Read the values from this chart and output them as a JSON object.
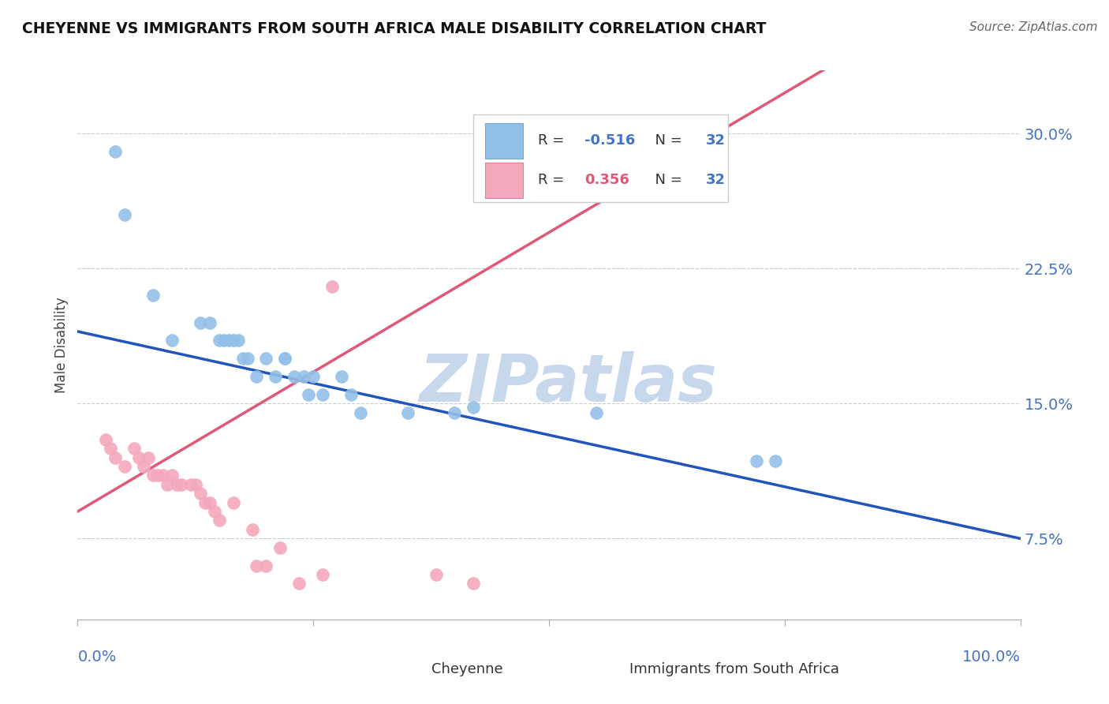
{
  "title": "CHEYENNE VS IMMIGRANTS FROM SOUTH AFRICA MALE DISABILITY CORRELATION CHART",
  "source": "Source: ZipAtlas.com",
  "ylabel": "Male Disability",
  "yticks": [
    0.075,
    0.15,
    0.225,
    0.3
  ],
  "ytick_labels": [
    "7.5%",
    "15.0%",
    "22.5%",
    "30.0%"
  ],
  "xlim": [
    0.0,
    1.0
  ],
  "ylim": [
    0.03,
    0.335
  ],
  "cheyenne_color": "#92C0E8",
  "cheyenne_edge": "#6AAAD4",
  "immigrants_color": "#F4A8BC",
  "immigrants_edge": "#E080A0",
  "trend_blue": "#2255BB",
  "trend_pink": "#E05878",
  "diag_color": "#BBBBBB",
  "cheyenne_R": -0.516,
  "cheyenne_N": 32,
  "immigrants_R": 0.356,
  "immigrants_N": 32,
  "cheyenne_x": [
    0.04,
    0.05,
    0.08,
    0.1,
    0.13,
    0.14,
    0.15,
    0.155,
    0.16,
    0.165,
    0.17,
    0.175,
    0.18,
    0.19,
    0.2,
    0.21,
    0.22,
    0.22,
    0.23,
    0.24,
    0.245,
    0.25,
    0.26,
    0.28,
    0.29,
    0.3,
    0.35,
    0.4,
    0.42,
    0.55,
    0.72,
    0.74
  ],
  "cheyenne_y": [
    0.29,
    0.255,
    0.21,
    0.185,
    0.195,
    0.195,
    0.185,
    0.185,
    0.185,
    0.185,
    0.185,
    0.175,
    0.175,
    0.165,
    0.175,
    0.165,
    0.175,
    0.175,
    0.165,
    0.165,
    0.155,
    0.165,
    0.155,
    0.165,
    0.155,
    0.145,
    0.145,
    0.145,
    0.148,
    0.145,
    0.118,
    0.118
  ],
  "immigrants_x": [
    0.03,
    0.035,
    0.04,
    0.05,
    0.06,
    0.065,
    0.07,
    0.075,
    0.08,
    0.085,
    0.09,
    0.095,
    0.1,
    0.105,
    0.11,
    0.12,
    0.125,
    0.13,
    0.135,
    0.14,
    0.145,
    0.15,
    0.165,
    0.185,
    0.19,
    0.2,
    0.215,
    0.235,
    0.26,
    0.27,
    0.38,
    0.42
  ],
  "immigrants_y": [
    0.13,
    0.125,
    0.12,
    0.115,
    0.125,
    0.12,
    0.115,
    0.12,
    0.11,
    0.11,
    0.11,
    0.105,
    0.11,
    0.105,
    0.105,
    0.105,
    0.105,
    0.1,
    0.095,
    0.095,
    0.09,
    0.085,
    0.095,
    0.08,
    0.06,
    0.06,
    0.07,
    0.05,
    0.055,
    0.215,
    0.055,
    0.05
  ],
  "watermark_text": "ZIPatlas",
  "watermark_color": "#C8D8EC",
  "grid_color": "#CCCCCC"
}
